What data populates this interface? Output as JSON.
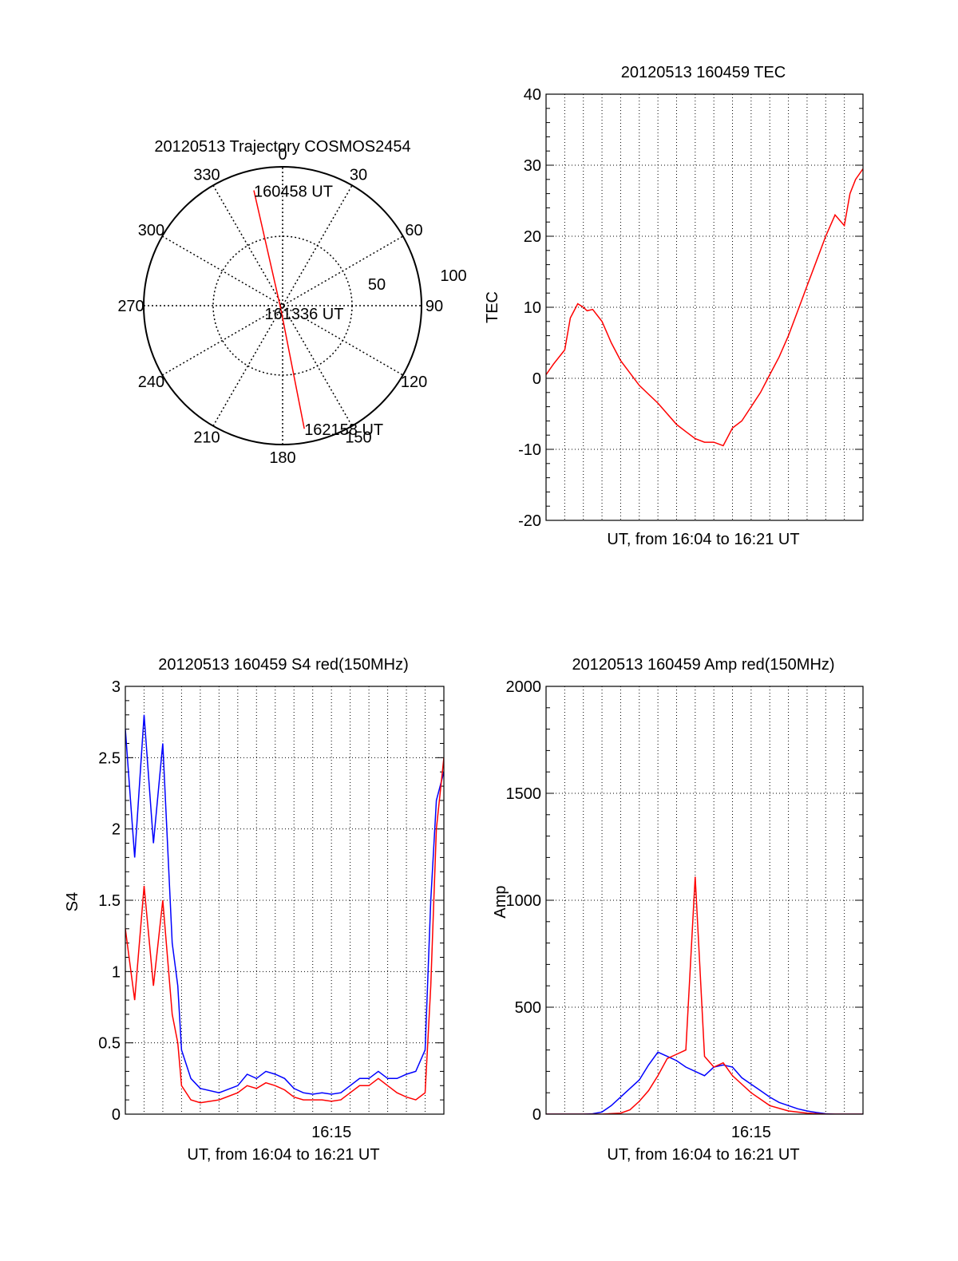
{
  "chart_data": [
    {
      "type": "polar",
      "title": "20120513 Trajectory COSMOS2454",
      "angle_labels": [
        "0",
        "30",
        "60",
        "90",
        "120",
        "150",
        "180",
        "210",
        "240",
        "270",
        "300",
        "330"
      ],
      "radius_labels": [
        "50",
        "100"
      ],
      "grid": true,
      "series": [
        {
          "color": "#ff0000",
          "points": [
            {
              "label": "160458 UT",
              "az": 346,
              "el": 13
            },
            {
              "label": "161336 UT",
              "az": 220,
              "el": 88
            },
            {
              "label": "162158 UT",
              "az": 170,
              "el": 9
            }
          ]
        }
      ]
    },
    {
      "type": "line",
      "title": "20120513 160459 TEC",
      "xlabel": "UT, from 16:04 to 16:21 UT",
      "ylabel": "TEC",
      "xlim": [
        0,
        17
      ],
      "ylim": [
        -20,
        40
      ],
      "yticks": [
        "-20",
        "-10",
        "0",
        "10",
        "20",
        "30",
        "40"
      ],
      "xticks": [],
      "grid": true,
      "series": [
        {
          "color": "#ff0000",
          "x": [
            0.0,
            0.4,
            1.0,
            1.3,
            1.7,
            2.0,
            2.2,
            2.5,
            3.0,
            3.5,
            4.0,
            5.0,
            6.0,
            7.0,
            7.5,
            8.0,
            8.5,
            9.0,
            9.5,
            10.0,
            10.5,
            11.0,
            11.5,
            12.0,
            12.5,
            13.0,
            13.5,
            14.0,
            14.5,
            15.0,
            15.5,
            16.0,
            16.3,
            16.6,
            17.0
          ],
          "y": [
            0.5,
            2.0,
            4.0,
            8.5,
            10.5,
            10.0,
            9.5,
            9.7,
            8.0,
            5.0,
            2.5,
            -1.0,
            -3.5,
            -6.5,
            -7.5,
            -8.5,
            -9.0,
            -9.0,
            -9.5,
            -7.0,
            -6.0,
            -4.0,
            -2.0,
            0.5,
            3.0,
            6.0,
            9.5,
            13.0,
            16.5,
            20.0,
            23.0,
            21.5,
            26.0,
            28.0,
            29.5
          ]
        }
      ]
    },
    {
      "type": "line",
      "title": "20120513 160459 S4 red(150MHz)",
      "xlabel": "UT, from 16:04 to 16:21 UT",
      "ylabel": "S4",
      "xlim": [
        0,
        17
      ],
      "ylim": [
        0,
        3
      ],
      "yticks": [
        "0",
        "0.5",
        "1",
        "1.5",
        "2",
        "2.5",
        "3"
      ],
      "xticks": [
        {
          "value": 11,
          "label": "16:15"
        }
      ],
      "grid": true,
      "series": [
        {
          "color": "#0000ff",
          "x": [
            0.0,
            0.5,
            1.0,
            1.5,
            2.0,
            2.5,
            2.8,
            3.0,
            3.5,
            4.0,
            5.0,
            6.0,
            6.5,
            7.0,
            7.5,
            8.0,
            8.5,
            9.0,
            9.5,
            10.0,
            10.5,
            11.0,
            11.5,
            12.0,
            12.5,
            13.0,
            13.5,
            14.0,
            14.5,
            15.0,
            15.5,
            16.0,
            16.3,
            16.6,
            17.0
          ],
          "y": [
            2.7,
            1.8,
            2.8,
            1.9,
            2.6,
            1.2,
            0.9,
            0.45,
            0.25,
            0.18,
            0.15,
            0.2,
            0.28,
            0.25,
            0.3,
            0.28,
            0.25,
            0.18,
            0.15,
            0.14,
            0.15,
            0.14,
            0.15,
            0.2,
            0.25,
            0.25,
            0.3,
            0.25,
            0.25,
            0.28,
            0.3,
            0.45,
            1.5,
            2.2,
            2.4
          ]
        },
        {
          "color": "#ff0000",
          "x": [
            0.0,
            0.5,
            1.0,
            1.5,
            2.0,
            2.5,
            2.8,
            3.0,
            3.5,
            4.0,
            5.0,
            6.0,
            6.5,
            7.0,
            7.5,
            8.0,
            8.5,
            9.0,
            9.5,
            10.0,
            10.5,
            11.0,
            11.5,
            12.0,
            12.5,
            13.0,
            13.5,
            14.0,
            14.5,
            15.0,
            15.5,
            16.0,
            16.3,
            16.6,
            17.0
          ],
          "y": [
            1.3,
            0.8,
            1.6,
            0.9,
            1.5,
            0.7,
            0.5,
            0.2,
            0.1,
            0.08,
            0.1,
            0.15,
            0.2,
            0.18,
            0.22,
            0.2,
            0.17,
            0.12,
            0.1,
            0.1,
            0.1,
            0.09,
            0.1,
            0.15,
            0.2,
            0.2,
            0.25,
            0.2,
            0.15,
            0.12,
            0.1,
            0.15,
            0.9,
            2.0,
            2.5
          ]
        }
      ]
    },
    {
      "type": "line",
      "title": "20120513 160459 Amp red(150MHz)",
      "xlabel": "UT, from 16:04 to 16:21 UT",
      "ylabel": "Amp",
      "xlim": [
        0,
        17
      ],
      "ylim": [
        0,
        2000
      ],
      "yticks": [
        "0",
        "500",
        "1000",
        "1500",
        "2000"
      ],
      "xticks": [
        {
          "value": 11,
          "label": "16:15"
        }
      ],
      "grid": true,
      "series": [
        {
          "color": "#0000ff",
          "x": [
            0.0,
            1.0,
            2.0,
            2.5,
            3.0,
            3.5,
            4.0,
            4.5,
            5.0,
            5.5,
            6.0,
            6.5,
            7.0,
            7.5,
            8.0,
            8.5,
            9.0,
            9.5,
            10.0,
            10.5,
            11.0,
            11.5,
            12.0,
            12.5,
            13.0,
            13.5,
            14.0,
            14.5,
            15.0,
            15.5,
            16.0,
            17.0
          ],
          "y": [
            0,
            0,
            0,
            2,
            10,
            40,
            80,
            120,
            160,
            230,
            290,
            270,
            250,
            220,
            200,
            180,
            220,
            230,
            220,
            170,
            140,
            110,
            80,
            55,
            40,
            25,
            15,
            8,
            2,
            0,
            0,
            0
          ]
        },
        {
          "color": "#ff0000",
          "x": [
            0.0,
            2.0,
            3.0,
            4.0,
            4.5,
            5.0,
            5.5,
            6.0,
            6.5,
            7.0,
            7.5,
            8.0,
            8.5,
            9.0,
            9.5,
            10.0,
            10.5,
            11.0,
            11.5,
            12.0,
            13.0,
            14.0,
            15.0,
            17.0
          ],
          "y": [
            0,
            0,
            0,
            5,
            20,
            60,
            110,
            180,
            260,
            280,
            300,
            1110,
            270,
            220,
            240,
            180,
            140,
            100,
            70,
            40,
            15,
            5,
            0,
            0
          ]
        }
      ]
    }
  ]
}
